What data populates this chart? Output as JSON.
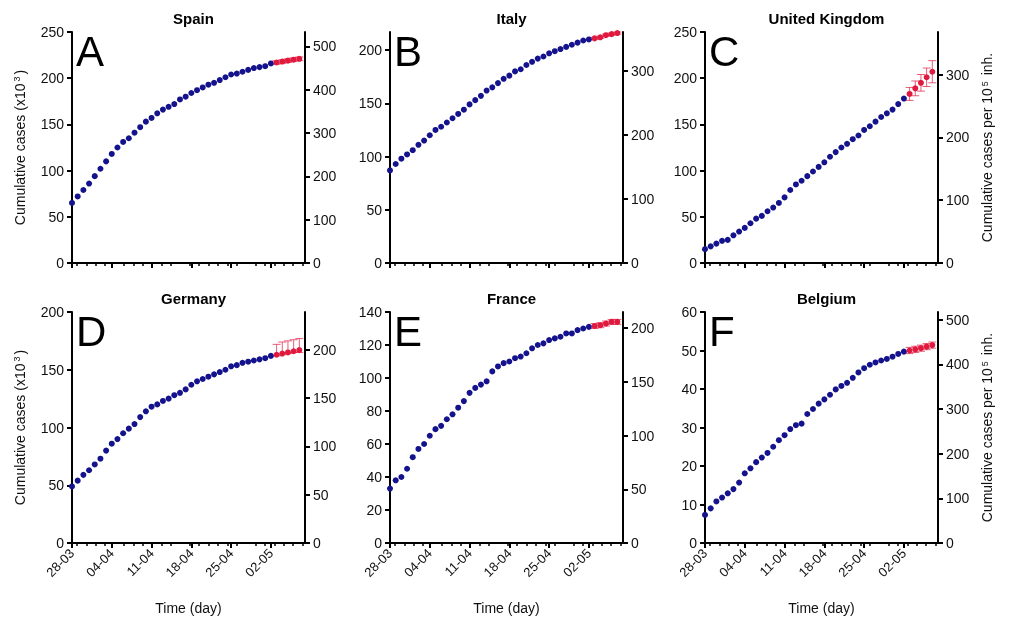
{
  "chart_data": [
    {
      "type": "scatter",
      "title": "Spain",
      "ylabel": "Cumulative cases (x10$^{3}$)",
      "annotations": [
        "A"
      ],
      "marker": "circle",
      "tick_labels": "y",
      "x": [
        "--03-28",
        "--03-29",
        "--03-30",
        "--03-31",
        "--04-01",
        "--04-02",
        "--04-03",
        "--04-04",
        "--04-05",
        "--04-06",
        "--04-07",
        "--04-08",
        "--04-09",
        "--04-10",
        "--04-11",
        "--04-12",
        "--04-13",
        "--04-14",
        "--04-15",
        "--04-16",
        "--04-17",
        "--04-18",
        "--04-19",
        "--04-20",
        "--04-21",
        "--04-22",
        "--04-23",
        "--04-24",
        "--04-25",
        "--04-26",
        "--04-27",
        "--04-28",
        "--04-29",
        "--04-30",
        "--05-01",
        "--05-02"
      ],
      "xlim": [
        "--03-28",
        "--05-08"
      ],
      "xticks": [
        {
          "value": "--03-28",
          "label": "28-03"
        },
        {
          "value": "--04-04",
          "label": "04-04"
        },
        {
          "value": "--04-11",
          "label": "11-04"
        },
        {
          "value": "--04-18",
          "label": "18-04"
        },
        {
          "value": "--04-25",
          "label": "25-04"
        },
        {
          "value": "--05-02",
          "label": "02-05"
        }
      ],
      "ylim": [
        0,
        250
      ],
      "yticks": [
        0,
        50,
        100,
        150,
        200,
        250
      ],
      "y2lim": [
        0,
        533
      ],
      "y2ticks": [
        0,
        100,
        200,
        300,
        400,
        500
      ],
      "series": [
        {
          "color": "#14128c",
          "values": [
            65,
            72,
            79,
            86,
            94,
            102,
            110,
            118,
            125,
            131,
            135,
            141,
            147,
            153,
            157,
            162,
            166,
            169,
            172,
            177,
            180,
            184,
            187,
            190,
            193,
            195,
            198,
            201,
            204,
            205,
            207,
            209,
            211,
            212,
            213,
            216
          ]
        },
        {
          "color": "#e0193f",
          "x": [
            "--05-03",
            "--05-04",
            "--05-05",
            "--05-06",
            "--05-07"
          ],
          "values": [
            217,
            218,
            219,
            220,
            221
          ],
          "errors": [
            2,
            2,
            2,
            2,
            2
          ]
        }
      ]
    },
    {
      "type": "scatter",
      "title": "Italy",
      "annotations": [
        "B"
      ],
      "marker": "circle",
      "tick_labels": "y",
      "x": [
        "--03-28",
        "--03-29",
        "--03-30",
        "--03-31",
        "--04-01",
        "--04-02",
        "--04-03",
        "--04-04",
        "--04-05",
        "--04-06",
        "--04-07",
        "--04-08",
        "--04-09",
        "--04-10",
        "--04-11",
        "--04-12",
        "--04-13",
        "--04-14",
        "--04-15",
        "--04-16",
        "--04-17",
        "--04-18",
        "--04-19",
        "--04-20",
        "--04-21",
        "--04-22",
        "--04-23",
        "--04-24",
        "--04-25",
        "--04-26",
        "--04-27",
        "--04-28",
        "--04-29",
        "--04-30",
        "--05-01",
        "--05-02"
      ],
      "xlim": [
        "--03-28",
        "--05-08"
      ],
      "xticks": [
        {
          "value": "--03-28",
          "label": "28-03"
        },
        {
          "value": "--04-04",
          "label": "04-04"
        },
        {
          "value": "--04-11",
          "label": "11-04"
        },
        {
          "value": "--04-18",
          "label": "18-04"
        },
        {
          "value": "--04-25",
          "label": "25-04"
        },
        {
          "value": "--05-02",
          "label": "02-05"
        }
      ],
      "ylim": [
        0,
        217
      ],
      "yticks": [
        0,
        50,
        100,
        150,
        200
      ],
      "y2lim": [
        0,
        360
      ],
      "y2ticks": [
        0,
        100,
        200,
        300
      ],
      "series": [
        {
          "color": "#14128c",
          "values": [
            87,
            93,
            98,
            102,
            106,
            111,
            115,
            120,
            125,
            128,
            132,
            136,
            140,
            144,
            149,
            153,
            157,
            162,
            165,
            169,
            173,
            176,
            180,
            182,
            186,
            189,
            192,
            194,
            197,
            199,
            201,
            203,
            205,
            207,
            209,
            210
          ]
        },
        {
          "color": "#e0193f",
          "x": [
            "--05-03",
            "--05-04",
            "--05-05",
            "--05-06",
            "--05-07"
          ],
          "values": [
            211,
            212,
            214,
            215,
            216
          ],
          "errors": [
            1,
            1,
            1,
            1,
            1
          ]
        }
      ]
    },
    {
      "type": "scatter",
      "title": "United Kingdom",
      "y2label": "Cumulative cases per 10$^{5}$ inh.",
      "annotations": [
        "C"
      ],
      "marker": "circle",
      "tick_labels": "y",
      "x": [
        "--03-28",
        "--03-29",
        "--03-30",
        "--03-31",
        "--04-01",
        "--04-02",
        "--04-03",
        "--04-04",
        "--04-05",
        "--04-06",
        "--04-07",
        "--04-08",
        "--04-09",
        "--04-10",
        "--04-11",
        "--04-12",
        "--04-13",
        "--04-14",
        "--04-15",
        "--04-16",
        "--04-17",
        "--04-18",
        "--04-19",
        "--04-20",
        "--04-21",
        "--04-22",
        "--04-23",
        "--04-24",
        "--04-25",
        "--04-26",
        "--04-27",
        "--04-28",
        "--04-29",
        "--04-30",
        "--05-01",
        "--05-02"
      ],
      "xlim": [
        "--03-28",
        "--05-08"
      ],
      "xticks": [
        {
          "value": "--03-28",
          "label": "28-03"
        },
        {
          "value": "--04-04",
          "label": "04-04"
        },
        {
          "value": "--04-11",
          "label": "11-04"
        },
        {
          "value": "--04-18",
          "label": "18-04"
        },
        {
          "value": "--04-25",
          "label": "25-04"
        },
        {
          "value": "--05-02",
          "label": "02-05"
        }
      ],
      "ylim": [
        0,
        250
      ],
      "yticks": [
        0,
        50,
        100,
        150,
        200,
        250
      ],
      "y2lim": [
        0,
        368
      ],
      "y2ticks": [
        0,
        100,
        200,
        300
      ],
      "series": [
        {
          "color": "#14128c",
          "values": [
            15,
            18,
            21,
            24,
            25,
            30,
            34,
            38,
            43,
            48,
            51,
            56,
            60,
            65,
            71,
            79,
            85,
            89,
            94,
            99,
            104,
            109,
            115,
            120,
            125,
            129,
            134,
            138,
            144,
            148,
            153,
            158,
            162,
            166,
            172,
            178
          ]
        },
        {
          "color": "#e0193f",
          "x": [
            "--05-03",
            "--05-04",
            "--05-05",
            "--05-06",
            "--05-07"
          ],
          "values": [
            183,
            189,
            195,
            201,
            207
          ],
          "errors": [
            7,
            8,
            9,
            10,
            12
          ]
        }
      ]
    },
    {
      "type": "scatter",
      "title": "Germany",
      "ylabel": "Cumulative cases (x10$^{3}$)",
      "xlabel": "Time (day)",
      "annotations": [
        "D"
      ],
      "marker": "circle",
      "x": [
        "--03-28",
        "--03-29",
        "--03-30",
        "--03-31",
        "--04-01",
        "--04-02",
        "--04-03",
        "--04-04",
        "--04-05",
        "--04-06",
        "--04-07",
        "--04-08",
        "--04-09",
        "--04-10",
        "--04-11",
        "--04-12",
        "--04-13",
        "--04-14",
        "--04-15",
        "--04-16",
        "--04-17",
        "--04-18",
        "--04-19",
        "--04-20",
        "--04-21",
        "--04-22",
        "--04-23",
        "--04-24",
        "--04-25",
        "--04-26",
        "--04-27",
        "--04-28",
        "--04-29",
        "--04-30",
        "--05-01",
        "--05-02"
      ],
      "xlim": [
        "--03-28",
        "--05-08"
      ],
      "xticks": [
        {
          "value": "--03-28",
          "label": "28-03"
        },
        {
          "value": "--04-04",
          "label": "04-04"
        },
        {
          "value": "--04-11",
          "label": "11-04"
        },
        {
          "value": "--04-18",
          "label": "18-04"
        },
        {
          "value": "--04-25",
          "label": "25-04"
        },
        {
          "value": "--05-02",
          "label": "02-05"
        }
      ],
      "ylim": [
        0,
        200
      ],
      "yticks": [
        0,
        50,
        100,
        150,
        200
      ],
      "y2lim": [
        0,
        239
      ],
      "y2ticks": [
        0,
        50,
        100,
        150,
        200
      ],
      "series": [
        {
          "color": "#14128c",
          "values": [
            49,
            54,
            59,
            63,
            68,
            73,
            80,
            86,
            90,
            95,
            99,
            103,
            109,
            114,
            118,
            120,
            123,
            125,
            128,
            130,
            133,
            137,
            140,
            142,
            144,
            146,
            148,
            150,
            153,
            154,
            156,
            157,
            158,
            159,
            160,
            162
          ]
        },
        {
          "color": "#e0193f",
          "x": [
            "--05-03",
            "--05-04",
            "--05-05",
            "--05-06",
            "--05-07"
          ],
          "values": [
            163,
            164,
            165,
            166,
            167
          ],
          "errors": [
            [
              162,
              172
            ],
            [
              163,
              174
            ],
            [
              164,
              175
            ],
            [
              165,
              176
            ],
            [
              165,
              177
            ]
          ]
        }
      ]
    },
    {
      "type": "scatter",
      "title": "France",
      "xlabel": "Time (day)",
      "annotations": [
        "E"
      ],
      "marker": "circle",
      "x": [
        "--03-28",
        "--03-29",
        "--03-30",
        "--03-31",
        "--04-01",
        "--04-02",
        "--04-03",
        "--04-04",
        "--04-05",
        "--04-06",
        "--04-07",
        "--04-08",
        "--04-09",
        "--04-10",
        "--04-11",
        "--04-12",
        "--04-13",
        "--04-14",
        "--04-15",
        "--04-16",
        "--04-17",
        "--04-18",
        "--04-19",
        "--04-20",
        "--04-21",
        "--04-22",
        "--04-23",
        "--04-24",
        "--04-25",
        "--04-26",
        "--04-27",
        "--04-28",
        "--04-29",
        "--04-30",
        "--05-01",
        "--05-02"
      ],
      "xlim": [
        "--03-28",
        "--05-08"
      ],
      "xticks": [
        {
          "value": "--03-28",
          "label": "28-03"
        },
        {
          "value": "--04-04",
          "label": "04-04"
        },
        {
          "value": "--04-11",
          "label": "11-04"
        },
        {
          "value": "--04-18",
          "label": "18-04"
        },
        {
          "value": "--04-25",
          "label": "25-04"
        },
        {
          "value": "--05-02",
          "label": "02-05"
        }
      ],
      "ylim": [
        0,
        140
      ],
      "yticks": [
        0,
        20,
        40,
        60,
        80,
        100,
        120,
        140
      ],
      "y2lim": [
        0,
        215
      ],
      "y2ticks": [
        0,
        50,
        100,
        150,
        200
      ],
      "series": [
        {
          "color": "#14128c",
          "values": [
            33,
            38,
            40,
            45,
            52,
            57,
            60,
            65,
            69,
            71,
            75,
            78,
            82,
            86,
            91,
            94,
            96,
            98,
            104,
            107,
            109,
            110,
            112,
            113,
            115,
            118,
            120,
            121,
            123,
            124,
            125,
            127,
            127,
            129,
            130,
            131
          ]
        },
        {
          "color": "#e0193f",
          "x": [
            "--05-03",
            "--05-04",
            "--05-05",
            "--05-06",
            "--05-07"
          ],
          "values": [
            131.5,
            132,
            133,
            134,
            134
          ],
          "errors": [
            1.5,
            1.5,
            1.5,
            1.5,
            1.5
          ]
        }
      ]
    },
    {
      "type": "scatter",
      "title": "Belgium",
      "xlabel": "Time (day)",
      "y2label": "Cumulative cases per 10$^{5}$ inh.",
      "annotations": [
        "F"
      ],
      "marker": "circle",
      "x": [
        "--03-28",
        "--03-29",
        "--03-30",
        "--03-31",
        "--04-01",
        "--04-02",
        "--04-03",
        "--04-04",
        "--04-05",
        "--04-06",
        "--04-07",
        "--04-08",
        "--04-09",
        "--04-10",
        "--04-11",
        "--04-12",
        "--04-13",
        "--04-14",
        "--04-15",
        "--04-16",
        "--04-17",
        "--04-18",
        "--04-19",
        "--04-20",
        "--04-21",
        "--04-22",
        "--04-23",
        "--04-24",
        "--04-25",
        "--04-26",
        "--04-27",
        "--04-28",
        "--04-29",
        "--04-30",
        "--05-01",
        "--05-02"
      ],
      "xlim": [
        "--03-28",
        "--05-08"
      ],
      "xticks": [
        {
          "value": "--03-28",
          "label": "28-03"
        },
        {
          "value": "--04-04",
          "label": "04-04"
        },
        {
          "value": "--04-11",
          "label": "11-04"
        },
        {
          "value": "--04-18",
          "label": "18-04"
        },
        {
          "value": "--04-25",
          "label": "25-04"
        },
        {
          "value": "--05-02",
          "label": "02-05"
        }
      ],
      "ylim": [
        0,
        60
      ],
      "yticks": [
        0,
        10,
        20,
        30,
        40,
        50,
        60
      ],
      "y2lim": [
        0,
        517
      ],
      "y2ticks": [
        0,
        100,
        200,
        300,
        400,
        500
      ],
      "series": [
        {
          "color": "#14128c",
          "values": [
            7.3,
            9.0,
            10.8,
            11.8,
            12.9,
            14.0,
            15.7,
            18.1,
            19.4,
            21.0,
            22.2,
            23.4,
            25.0,
            26.7,
            28.0,
            29.6,
            30.6,
            31.0,
            33.5,
            34.8,
            36.2,
            37.3,
            38.5,
            39.9,
            40.8,
            41.6,
            42.9,
            44.3,
            45.4,
            46.3,
            46.9,
            47.4,
            47.8,
            48.4,
            49.1,
            49.7
          ]
        },
        {
          "color": "#e0193f",
          "x": [
            "--05-03",
            "--05-04",
            "--05-05",
            "--05-06",
            "--05-07"
          ],
          "values": [
            50.0,
            50.3,
            50.6,
            51.0,
            51.4
          ],
          "errors": [
            0.8,
            0.8,
            0.8,
            0.8,
            0.8
          ]
        }
      ]
    }
  ]
}
